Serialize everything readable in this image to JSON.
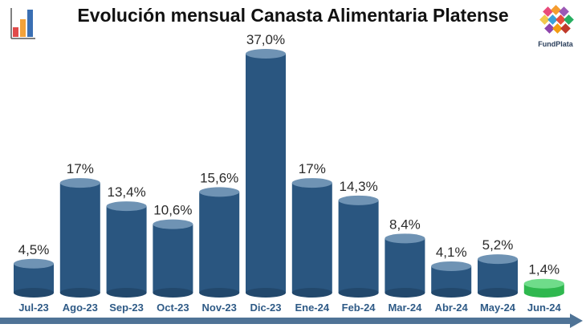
{
  "title": "Evolución mensual Canasta Alimentaria Platense",
  "logo": {
    "text": "FundPlata"
  },
  "colors": {
    "bar_body": "#2a5680",
    "bar_top": "#6f93b4",
    "bar_bottom": "#22486c",
    "highlight_body": "#2fb84f",
    "highlight_top": "#6fdc8a",
    "category_text": "#2e5a86",
    "baseline_arrow": "#4f7396"
  },
  "chart_data": {
    "type": "bar",
    "title": "Evolución mensual Canasta Alimentaria Platense",
    "categories": [
      "Jul-23",
      "Ago-23",
      "Sep-23",
      "Oct-23",
      "Nov-23",
      "Dic-23",
      "Ene-24",
      "Feb-24",
      "Mar-24",
      "Abr-24",
      "May-24",
      "Jun-24"
    ],
    "values": [
      4.5,
      17,
      13.4,
      10.6,
      15.6,
      37.0,
      17,
      14.3,
      8.4,
      4.1,
      5.2,
      1.4
    ],
    "value_labels": [
      "4,5%",
      "17%",
      "13,4%",
      "10,6%",
      "15,6%",
      "37,0%",
      "17%",
      "14,3%",
      "8,4%",
      "4,1%",
      "5,2%",
      "1,4%"
    ],
    "highlighted_category": "Jun-24",
    "ylim": [
      0,
      37
    ],
    "grid": false,
    "legend": "none",
    "style": "cylinder"
  }
}
